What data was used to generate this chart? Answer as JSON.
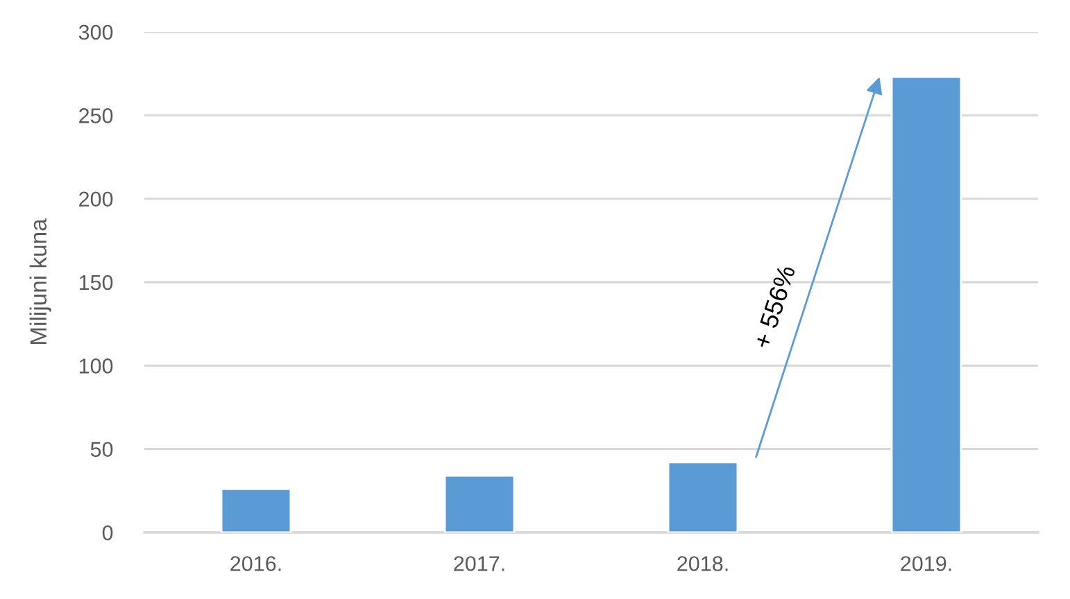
{
  "chart_data": {
    "type": "bar",
    "categories": [
      "2016.",
      "2017.",
      "2018.",
      "2019."
    ],
    "values": [
      26,
      34,
      42,
      273
    ],
    "color": "#5b9bd5",
    "ylabel": "Milijuni kuna",
    "ylim": [
      0,
      300
    ],
    "yticks": [
      0,
      50,
      100,
      150,
      200,
      250,
      300
    ],
    "grid": "y",
    "annotations": [
      "+ 556%"
    ]
  }
}
